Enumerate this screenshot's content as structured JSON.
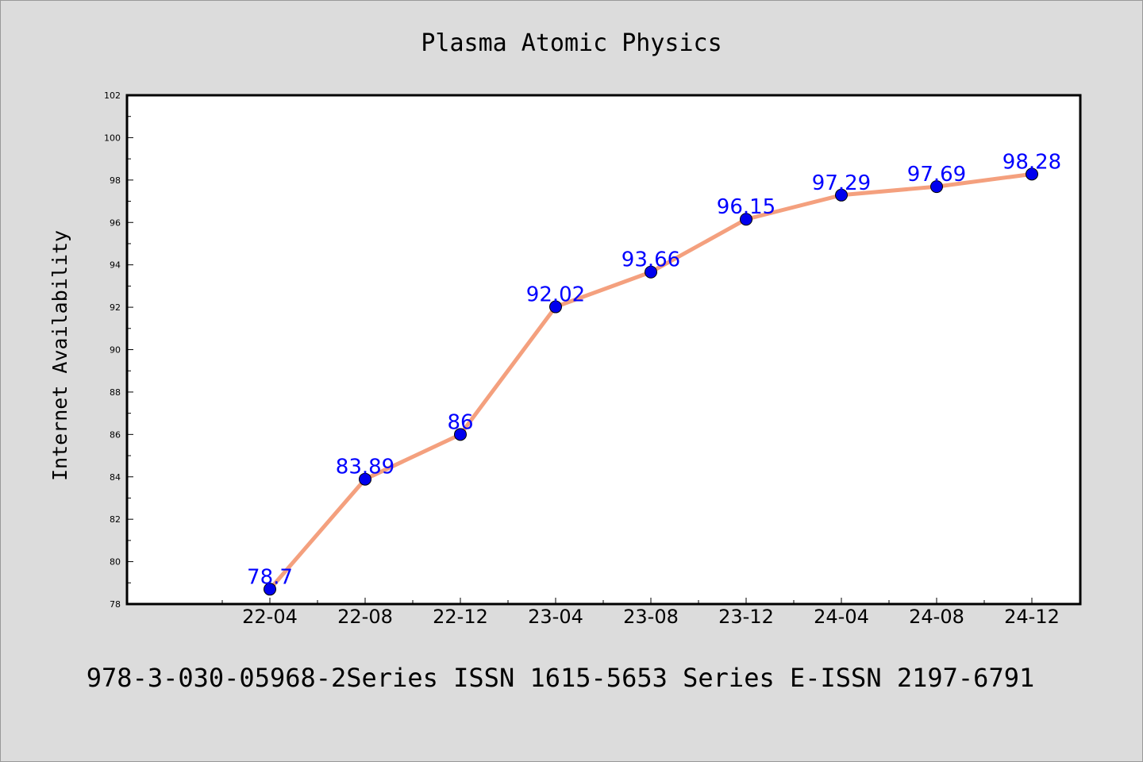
{
  "chart_data": {
    "type": "line",
    "title": "Plasma Atomic Physics",
    "xlabel": "",
    "ylabel": "Internet Availability",
    "categories": [
      "22-04",
      "22-08",
      "22-12",
      "23-04",
      "23-08",
      "23-12",
      "24-04",
      "24-08",
      "24-12"
    ],
    "values": [
      78.7,
      83.89,
      86,
      92.02,
      93.66,
      96.15,
      97.29,
      97.69,
      98.28
    ],
    "data_labels": [
      "78.7",
      "83.89",
      "86",
      "92.02",
      "93.66",
      "96.15",
      "97.29",
      "97.69",
      "98.28"
    ],
    "ylim": [
      78,
      102
    ],
    "yticks": [
      "78",
      "80",
      "82",
      "84",
      "86",
      "88",
      "90",
      "92",
      "94",
      "96",
      "98",
      "100",
      "102"
    ],
    "grid": false,
    "legend": "none",
    "colors": {
      "line": "#f4a07e",
      "marker": "#0000ee",
      "label": "#0000ff",
      "background": "#dcdcdc",
      "plot_background": "#ffffff"
    }
  },
  "footer": {
    "text": "978-3-030-05968-2Series ISSN 1615-5653 Series E-ISSN 2197-6791"
  }
}
